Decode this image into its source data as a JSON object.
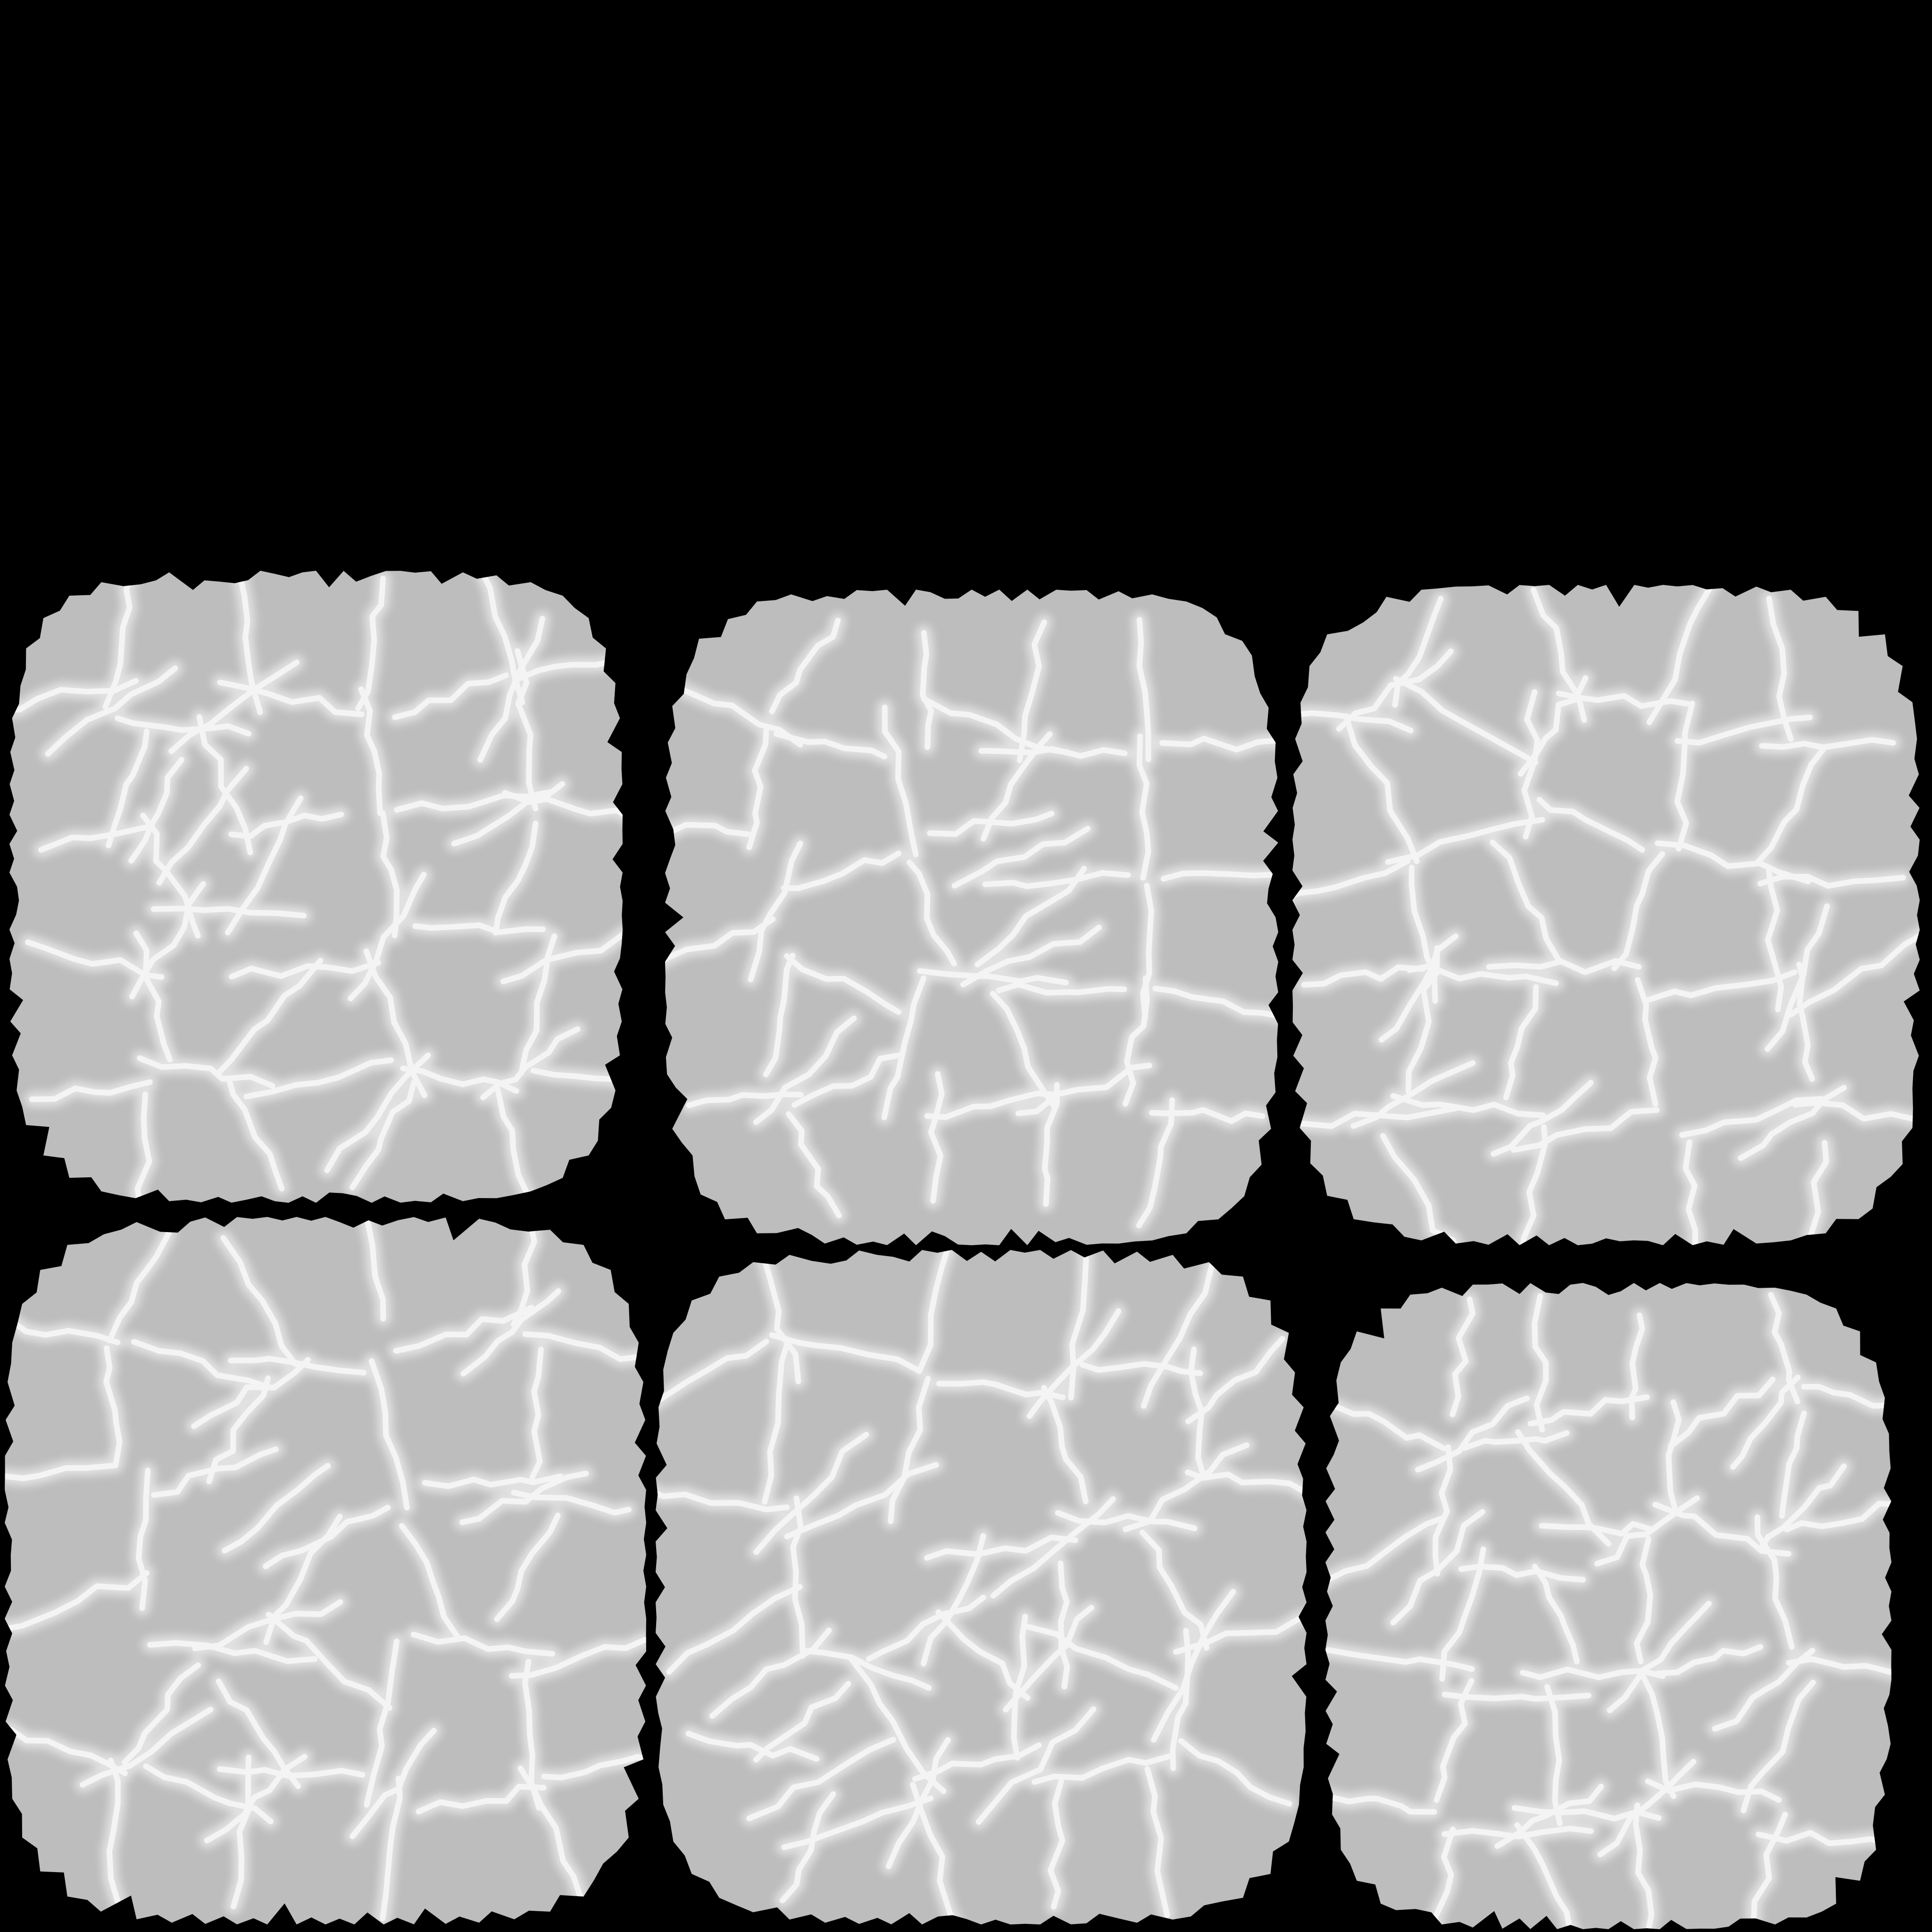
{
  "atlas": {
    "background_color": "#000000",
    "tile_fill_color": "#bdbdbd",
    "crack_color": "#f4f4f4",
    "crack_glow_color": "#ffffff",
    "rows": 2,
    "columns": 3,
    "tile_count": 6
  }
}
